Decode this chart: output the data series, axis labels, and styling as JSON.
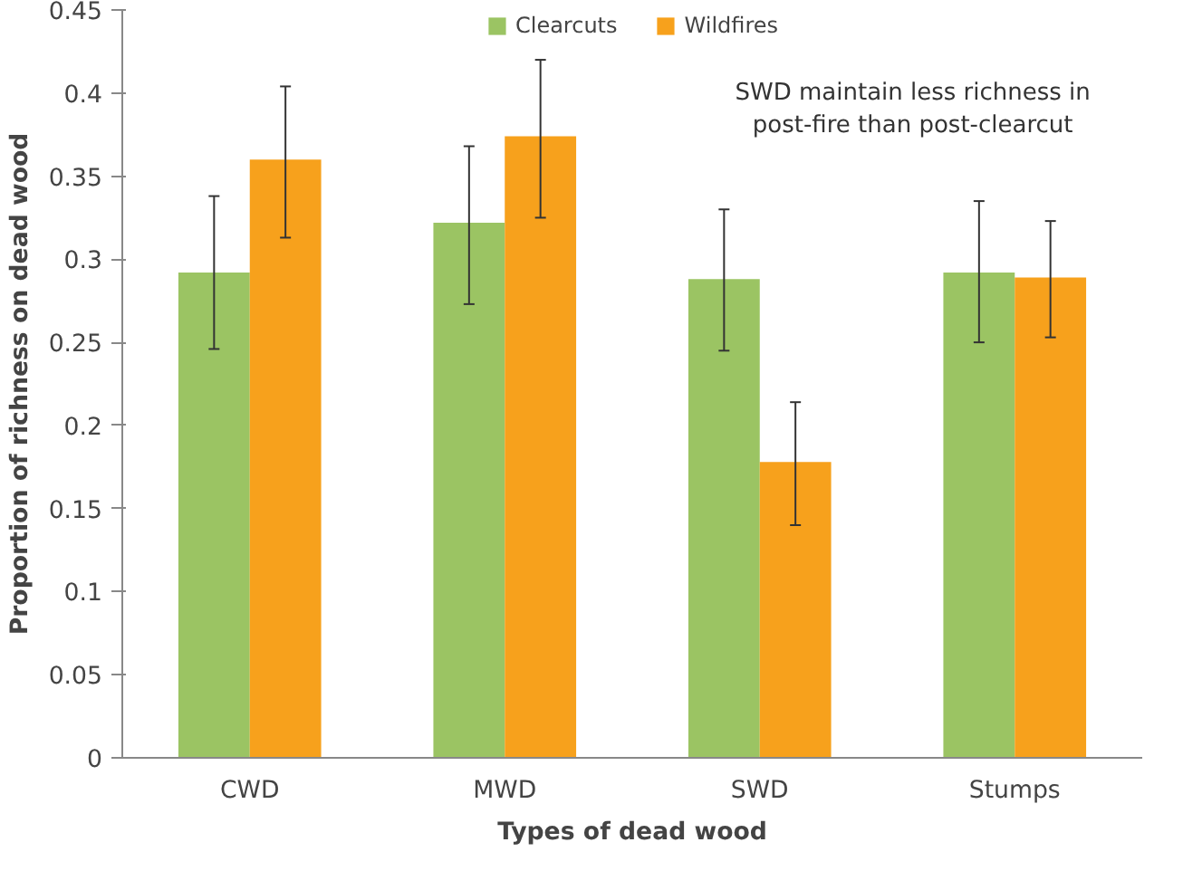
{
  "chart_data": {
    "type": "bar",
    "xlabel": "Types of dead wood",
    "ylabel": "Proportion of richness on dead wood",
    "categories": [
      "CWD",
      "MWD",
      "SWD",
      "Stumps"
    ],
    "series": [
      {
        "name": "Clearcuts",
        "color": "#9bc463",
        "values": [
          0.292,
          0.322,
          0.288,
          0.292
        ],
        "errors": [
          [
            0.246,
            0.338
          ],
          [
            0.273,
            0.368
          ],
          [
            0.245,
            0.33
          ],
          [
            0.25,
            0.335
          ]
        ]
      },
      {
        "name": "Wildfires",
        "color": "#f7a11c",
        "values": [
          0.36,
          0.374,
          0.178,
          0.289
        ],
        "errors": [
          [
            0.313,
            0.404
          ],
          [
            0.325,
            0.42
          ],
          [
            0.14,
            0.214
          ],
          [
            0.253,
            0.323
          ]
        ]
      }
    ],
    "ylim": [
      0,
      0.45
    ],
    "yticks": [
      0,
      0.05,
      0.1,
      0.15,
      0.2,
      0.25,
      0.3,
      0.35,
      0.4,
      0.45
    ],
    "annotations": [
      "SWD maintain less richness in\npost-fire than post-clearcut"
    ],
    "legend": "top",
    "grid": false
  }
}
